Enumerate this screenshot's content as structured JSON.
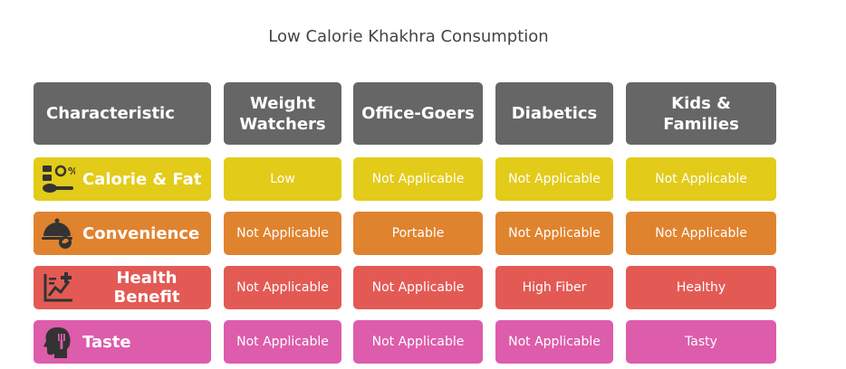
{
  "title": "Low Calorie Khakhra Consumption",
  "colors": {
    "header": "#666666",
    "rows": [
      "#e3cb19",
      "#e0832f",
      "#e35a55",
      "#dd5cab"
    ]
  },
  "chart_data": {
    "type": "table",
    "title": "Low Calorie Khakhra Consumption",
    "columns": [
      "Characteristic",
      "Weight Watchers",
      "Office-Goers",
      "Diabetics",
      "Kids & Families"
    ],
    "rows": [
      {
        "label": "Calorie & Fat",
        "icon": "calorie-fat-icon",
        "values": [
          "Low",
          "Not Applicable",
          "Not Applicable",
          "Not Applicable"
        ]
      },
      {
        "label": "Convenience",
        "icon": "food-service-icon",
        "values": [
          "Not Applicable",
          "Portable",
          "Not Applicable",
          "Not Applicable"
        ]
      },
      {
        "label": "Health Benefit",
        "icon": "health-chart-icon",
        "values": [
          "Not Applicable",
          "Not Applicable",
          "High Fiber",
          "Healthy"
        ]
      },
      {
        "label": "Taste",
        "icon": "taste-head-icon",
        "values": [
          "Not Applicable",
          "Not Applicable",
          "Not Applicable",
          "Tasty"
        ]
      }
    ]
  }
}
